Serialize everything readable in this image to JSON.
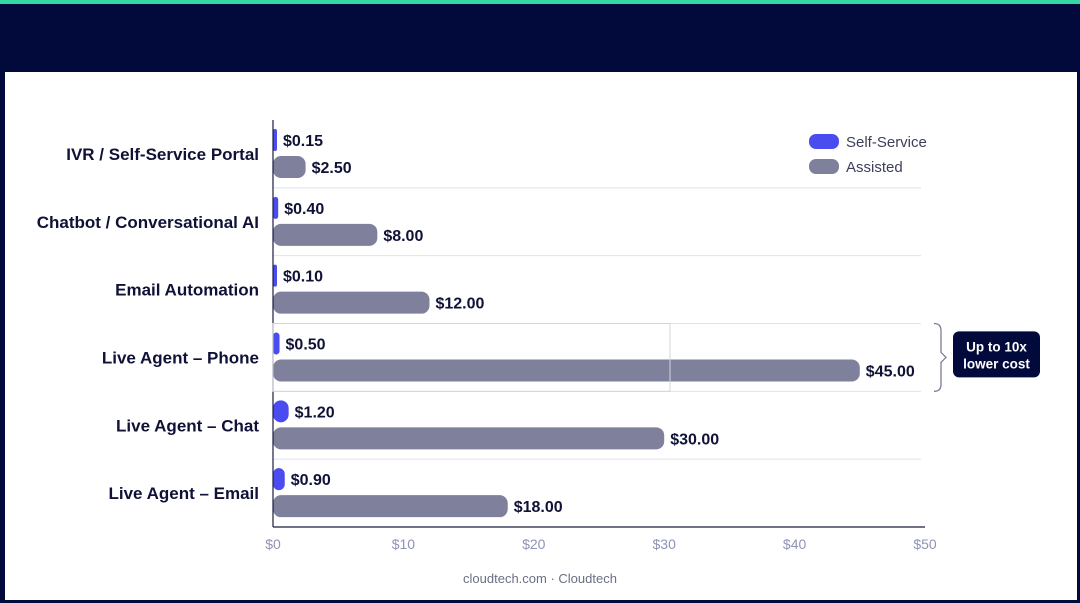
{
  "colors": {
    "accent_bar": "#34d6a4",
    "page_background": "#010a3b",
    "self_service": "#4a4cef",
    "assisted": "#7f809c",
    "callout_background": "#010a3b",
    "text": "#0f1236",
    "tick_text": "#8f93b5"
  },
  "footer": {
    "text": "cloudtech.com · Cloudtech"
  },
  "chart_data": {
    "type": "bar",
    "orientation": "horizontal",
    "categories": [
      "IVR / Self-Service Portal",
      "Chatbot / Conversational AI",
      "Email Automation",
      "Live Agent – Phone",
      "Live Agent – Chat",
      "Live Agent – Email"
    ],
    "series": [
      {
        "name": "Self-Service",
        "values": [
          0.15,
          0.4,
          0.1,
          0.5,
          1.2,
          0.9
        ],
        "labels": [
          "$0.15",
          "$0.40",
          "$0.10",
          "$0.50",
          "$1.20",
          "$0.90"
        ]
      },
      {
        "name": "Assisted",
        "values": [
          2.5,
          8.0,
          12.0,
          45.0,
          30.0,
          18.0
        ],
        "labels": [
          "$2.50",
          "$8.00",
          "$12.00",
          "$45.00",
          "$30.00",
          "$18.00"
        ]
      }
    ],
    "xlim": [
      0,
      50
    ],
    "xticks": [
      0,
      10,
      20,
      30,
      40,
      50
    ],
    "xtick_labels": [
      "$0",
      "$10",
      "$20",
      "$30",
      "$40",
      "$50"
    ],
    "title": "",
    "xlabel": "",
    "ylabel": "",
    "legend": "top-right",
    "grid": false,
    "annotation": {
      "category": "Live Agent – Phone",
      "lines": [
        "Up to 10x",
        "lower cost"
      ]
    }
  }
}
